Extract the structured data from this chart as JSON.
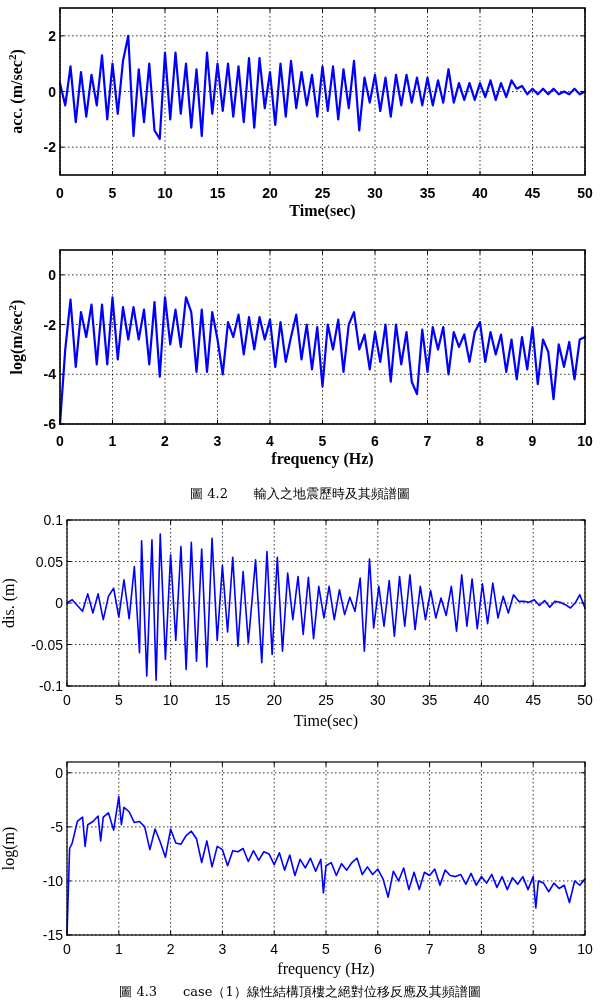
{
  "chart_data": [
    {
      "type": "line",
      "xlabel": "Time(sec)",
      "ylabel": "acc. (m/sec$^{2}$)",
      "xlim": [
        0,
        50
      ],
      "ylim": [
        -3,
        3
      ],
      "xticks": [
        0,
        5,
        10,
        15,
        20,
        25,
        30,
        35,
        40,
        45,
        50
      ],
      "yticks": [
        -2,
        0,
        2
      ],
      "grid": true,
      "line_style": "solid",
      "marker": "none",
      "series": [
        {
          "color": "#0000ff",
          "x": [
            0,
            0.5,
            1,
            1.5,
            2,
            2.5,
            3,
            3.5,
            4,
            4.5,
            5,
            5.5,
            6,
            6.5,
            7,
            7.5,
            8,
            8.5,
            9,
            9.5,
            10,
            10.5,
            11,
            11.5,
            12,
            12.5,
            13,
            13.5,
            14,
            14.5,
            15,
            15.5,
            16,
            16.5,
            17,
            17.5,
            18,
            18.5,
            19,
            19.5,
            20,
            20.5,
            21,
            21.5,
            22,
            22.5,
            23,
            23.5,
            24,
            24.5,
            25,
            25.5,
            26,
            26.5,
            27,
            27.5,
            28,
            28.5,
            29,
            29.5,
            30,
            30.5,
            31,
            31.5,
            32,
            32.5,
            33,
            33.5,
            34,
            34.5,
            35,
            35.5,
            36,
            36.5,
            37,
            37.5,
            38,
            38.5,
            39,
            39.5,
            40,
            40.5,
            41,
            41.5,
            42,
            42.5,
            43,
            43.5,
            44,
            44.5,
            45,
            45.5,
            46,
            46.5,
            47,
            47.5,
            48,
            48.5,
            49,
            49.5,
            50
          ],
          "values": [
            0.3,
            -0.5,
            0.9,
            -1.1,
            0.7,
            -0.9,
            0.6,
            -0.5,
            1.3,
            -1.0,
            1.0,
            -0.8,
            1.1,
            2.0,
            -1.6,
            0.8,
            -1.1,
            1.0,
            -1.4,
            -1.7,
            1.4,
            -1.0,
            1.4,
            -0.8,
            1.0,
            -1.3,
            0.8,
            -1.6,
            1.4,
            -0.8,
            1.0,
            -0.7,
            1.0,
            -0.9,
            0.9,
            -1.1,
            1.2,
            -1.3,
            1.2,
            -0.6,
            0.7,
            -1.2,
            1.0,
            -0.9,
            1.1,
            -0.6,
            0.7,
            -0.5,
            0.6,
            -0.9,
            0.9,
            -0.7,
            0.9,
            -1.0,
            0.8,
            -0.6,
            1.1,
            -1.4,
            0.5,
            -0.4,
            0.6,
            -0.7,
            0.5,
            -0.9,
            0.6,
            -0.5,
            0.6,
            -0.4,
            0.5,
            -0.5,
            0.5,
            -0.5,
            0.4,
            -0.4,
            0.8,
            -0.4,
            0.3,
            -0.3,
            0.3,
            -0.3,
            0.3,
            -0.2,
            0.4,
            -0.3,
            0.3,
            -0.2,
            0.4,
            0.1,
            0.2,
            -0.1,
            0.1,
            -0.1,
            0.1,
            -0.1,
            0.1,
            -0.1,
            0.0,
            -0.1,
            0.1,
            -0.1,
            0.0
          ]
        }
      ]
    },
    {
      "type": "line",
      "xlabel": "frequency (Hz)",
      "ylabel": "log(m/sec$^{2}$)",
      "xlim": [
        0,
        10
      ],
      "ylim": [
        -6,
        1
      ],
      "xticks": [
        0,
        1,
        2,
        3,
        4,
        5,
        6,
        7,
        8,
        9,
        10
      ],
      "yticks": [
        -6,
        -4,
        -2,
        0
      ],
      "grid": true,
      "line_style": "solid",
      "marker": "none",
      "annotations": [
        "圖 4.2　　輸入之地震歷時及其頻譜圖"
      ],
      "series": [
        {
          "color": "#0000ff",
          "x": [
            0,
            0.1,
            0.2,
            0.3,
            0.4,
            0.5,
            0.6,
            0.7,
            0.8,
            0.9,
            1.0,
            1.1,
            1.2,
            1.3,
            1.4,
            1.5,
            1.6,
            1.7,
            1.8,
            1.9,
            2.0,
            2.1,
            2.2,
            2.3,
            2.4,
            2.5,
            2.6,
            2.7,
            2.8,
            2.9,
            3.0,
            3.1,
            3.2,
            3.3,
            3.4,
            3.5,
            3.6,
            3.7,
            3.8,
            3.9,
            4.0,
            4.1,
            4.2,
            4.3,
            4.4,
            4.5,
            4.6,
            4.7,
            4.8,
            4.9,
            5.0,
            5.1,
            5.2,
            5.3,
            5.4,
            5.5,
            5.6,
            5.7,
            5.8,
            5.9,
            6.0,
            6.1,
            6.2,
            6.3,
            6.4,
            6.5,
            6.6,
            6.7,
            6.8,
            6.9,
            7.0,
            7.1,
            7.2,
            7.3,
            7.4,
            7.5,
            7.6,
            7.7,
            7.8,
            7.9,
            8.0,
            8.1,
            8.2,
            8.3,
            8.4,
            8.5,
            8.6,
            8.7,
            8.8,
            8.9,
            9.0,
            9.1,
            9.2,
            9.3,
            9.4,
            9.5,
            9.6,
            9.7,
            9.8,
            9.9,
            10.0
          ],
          "values": [
            -6,
            -3,
            -1.0,
            -3.7,
            -1.5,
            -2.5,
            -1.2,
            -3.6,
            -1.2,
            -3.6,
            -0.9,
            -3.4,
            -1.3,
            -2.6,
            -1.3,
            -2.6,
            -1.4,
            -3.6,
            -1.1,
            -4.1,
            -0.9,
            -2.8,
            -1.4,
            -2.9,
            -0.9,
            -1.5,
            -3.9,
            -1.4,
            -3.9,
            -1.5,
            -2.6,
            -4.0,
            -1.9,
            -2.5,
            -1.6,
            -3.2,
            -1.7,
            -3.0,
            -1.7,
            -2.6,
            -1.8,
            -3.7,
            -1.9,
            -3.5,
            -2.5,
            -1.6,
            -3.4,
            -2.0,
            -3.8,
            -2.1,
            -4.5,
            -2.0,
            -3.0,
            -1.8,
            -3.9,
            -2.0,
            -1.5,
            -3.0,
            -2.4,
            -3.8,
            -2.3,
            -3.5,
            -2.0,
            -4.3,
            -2.0,
            -3.6,
            -2.3,
            -4.3,
            -4.8,
            -2.2,
            -3.9,
            -2.1,
            -3.0,
            -2.1,
            -4.0,
            -2.3,
            -2.9,
            -2.4,
            -3.5,
            -2.3,
            -1.9,
            -3.5,
            -2.3,
            -3.2,
            -2.4,
            -3.9,
            -2.6,
            -4.2,
            -2.5,
            -3.8,
            -2.1,
            -4.4,
            -2.6,
            -3.1,
            -5.0,
            -2.8,
            -3.7,
            -2.7,
            -4.2,
            -2.6,
            -2.5
          ]
        }
      ]
    },
    {
      "type": "line",
      "xlabel": "Time(sec)",
      "ylabel": "dis. (m)",
      "xlim": [
        0,
        50
      ],
      "ylim": [
        -0.1,
        0.1
      ],
      "xticks": [
        0,
        5,
        10,
        15,
        20,
        25,
        30,
        35,
        40,
        45,
        50
      ],
      "yticks": [
        -0.1,
        -0.05,
        0,
        0.05,
        0.1
      ],
      "grid": true,
      "line_style": "solid",
      "marker": "none",
      "series": [
        {
          "color": "#0000ff",
          "x": [
            0,
            0.5,
            1,
            1.5,
            2,
            2.5,
            3,
            3.5,
            4,
            4.5,
            5,
            5.5,
            6,
            6.5,
            7,
            7.2,
            7.7,
            8.2,
            8.6,
            9,
            9.5,
            10,
            10.5,
            11,
            11.5,
            12,
            12.5,
            13,
            13.5,
            14,
            14.5,
            15,
            15.5,
            16,
            16.5,
            17,
            17.5,
            18.2,
            18.8,
            19.3,
            19.8,
            20.3,
            20.8,
            21.3,
            21.8,
            22.3,
            22.8,
            23.3,
            23.8,
            24.3,
            24.8,
            25.3,
            25.8,
            26.3,
            26.8,
            27.3,
            27.8,
            28.3,
            28.7,
            29.2,
            29.6,
            30.1,
            30.6,
            31.1,
            31.6,
            32.1,
            32.6,
            33.1,
            33.6,
            34.1,
            34.6,
            35.1,
            35.6,
            36.1,
            36.6,
            37.1,
            37.6,
            38.1,
            38.6,
            39.1,
            39.6,
            40.1,
            40.6,
            41.1,
            41.6,
            42.1,
            42.6,
            43.1,
            43.6,
            44.1,
            44.6,
            45.1,
            45.6,
            46.1,
            46.6,
            47.1,
            47.6,
            48.1,
            48.6,
            49.1,
            49.5,
            50
          ],
          "values": [
            0,
            0.004,
            -0.003,
            -0.01,
            0.011,
            -0.012,
            0.011,
            -0.02,
            0.008,
            0.018,
            -0.017,
            0.028,
            -0.019,
            0.044,
            -0.06,
            0.075,
            -0.088,
            0.076,
            -0.093,
            0.083,
            -0.068,
            0.058,
            -0.045,
            0.068,
            -0.08,
            0.073,
            -0.07,
            0.065,
            -0.077,
            0.078,
            -0.045,
            0.045,
            -0.035,
            0.055,
            -0.052,
            0.038,
            -0.048,
            0.052,
            -0.072,
            0.062,
            -0.062,
            0.055,
            -0.058,
            0.036,
            -0.02,
            0.032,
            -0.038,
            0.031,
            -0.043,
            0.02,
            -0.018,
            0.02,
            -0.02,
            0.016,
            -0.014,
            0.007,
            -0.01,
            0.03,
            -0.058,
            0.053,
            -0.03,
            0.02,
            -0.028,
            0.027,
            -0.04,
            0.032,
            -0.028,
            0.034,
            -0.032,
            0.02,
            -0.02,
            0.015,
            -0.018,
            0.006,
            -0.015,
            0.02,
            -0.034,
            0.034,
            -0.028,
            0.029,
            -0.031,
            0.023,
            -0.025,
            0.024,
            -0.018,
            0.008,
            -0.012,
            0.01,
            0.002,
            0.002,
            0.001,
            0.004,
            -0.003,
            0.003,
            -0.005,
            0.002,
            0.001,
            -0.002,
            -0.006,
            0.001,
            0.01,
            -0.006
          ]
        }
      ]
    },
    {
      "type": "line",
      "xlabel": "frequency (Hz)",
      "ylabel": "log(m)",
      "xlim": [
        0,
        10
      ],
      "ylim": [
        -15,
        1
      ],
      "xticks": [
        0,
        1,
        2,
        3,
        4,
        5,
        6,
        7,
        8,
        9,
        10
      ],
      "yticks": [
        -15,
        -10,
        -5,
        0
      ],
      "grid": true,
      "line_style": "solid",
      "marker": "none",
      "annotations": [
        "圖 4.3　　case（1）線性結構頂樓之絕對位移反應及其頻譜圖"
      ],
      "series": [
        {
          "color": "#0000ff",
          "x": [
            0,
            0.05,
            0.1,
            0.2,
            0.3,
            0.35,
            0.4,
            0.5,
            0.6,
            0.65,
            0.7,
            0.8,
            0.9,
            1.0,
            1.05,
            1.1,
            1.2,
            1.3,
            1.4,
            1.5,
            1.6,
            1.7,
            1.8,
            1.9,
            2.0,
            2.1,
            2.2,
            2.3,
            2.4,
            2.5,
            2.6,
            2.7,
            2.8,
            2.9,
            3.0,
            3.1,
            3.2,
            3.3,
            3.4,
            3.5,
            3.6,
            3.7,
            3.8,
            3.9,
            4.0,
            4.1,
            4.2,
            4.3,
            4.4,
            4.5,
            4.6,
            4.7,
            4.8,
            4.9,
            4.95,
            5.0,
            5.1,
            5.2,
            5.3,
            5.4,
            5.5,
            5.6,
            5.7,
            5.8,
            5.9,
            6.0,
            6.1,
            6.2,
            6.3,
            6.4,
            6.5,
            6.6,
            6.7,
            6.8,
            6.9,
            7.0,
            7.1,
            7.2,
            7.3,
            7.4,
            7.5,
            7.6,
            7.7,
            7.8,
            7.9,
            8.0,
            8.1,
            8.2,
            8.3,
            8.4,
            8.5,
            8.6,
            8.7,
            8.8,
            8.9,
            9.0,
            9.05,
            9.1,
            9.2,
            9.3,
            9.4,
            9.5,
            9.6,
            9.7,
            9.8,
            9.9,
            10.0
          ],
          "values": [
            -15,
            -7,
            -6.5,
            -4.5,
            -4.1,
            -6.8,
            -4.8,
            -4.5,
            -4.0,
            -6.3,
            -4.1,
            -3.7,
            -5.3,
            -2.2,
            -4.8,
            -3.2,
            -3.6,
            -4.6,
            -4.5,
            -5.0,
            -7.1,
            -5.2,
            -6.4,
            -7.8,
            -5.2,
            -6.5,
            -6.6,
            -5.8,
            -5.4,
            -6.1,
            -8.3,
            -6.3,
            -8.7,
            -6.8,
            -7.1,
            -8.6,
            -7.2,
            -7.3,
            -7.0,
            -8.2,
            -7.2,
            -8.1,
            -7.3,
            -7.5,
            -8.5,
            -7.4,
            -9.0,
            -7.6,
            -9.5,
            -8.0,
            -8.8,
            -7.9,
            -9.1,
            -8.0,
            -11.1,
            -8.6,
            -8.3,
            -9.5,
            -8.4,
            -9.0,
            -8.3,
            -7.9,
            -9.4,
            -8.7,
            -9.4,
            -8.9,
            -9.8,
            -11.5,
            -9.1,
            -10.0,
            -8.8,
            -10.8,
            -9.2,
            -10.8,
            -9.2,
            -9.5,
            -8.9,
            -10.4,
            -9.0,
            -9.5,
            -9.6,
            -9.4,
            -10.3,
            -9.3,
            -10.4,
            -9.6,
            -10.2,
            -9.4,
            -10.6,
            -9.6,
            -10.8,
            -9.7,
            -10.3,
            -9.6,
            -10.8,
            -9.6,
            -12.5,
            -10.0,
            -10.2,
            -11.0,
            -10.2,
            -10.7,
            -10.4,
            -12.0,
            -10.0,
            -10.4,
            -9.8
          ]
        }
      ]
    }
  ]
}
